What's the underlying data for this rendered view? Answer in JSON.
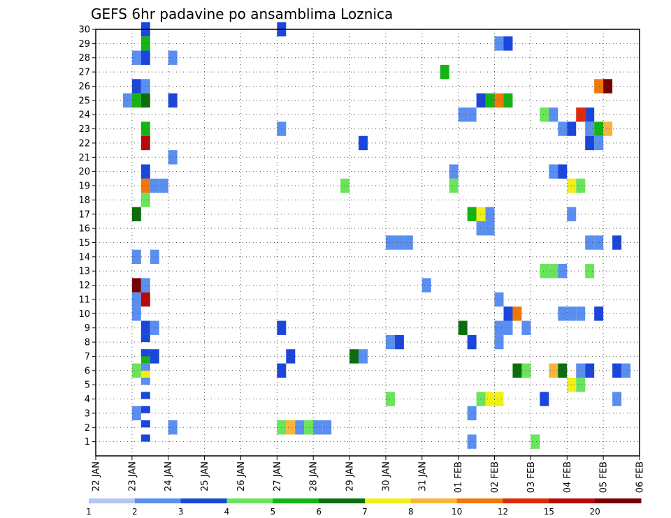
{
  "chart_data": {
    "type": "heatmap",
    "title": "GEFS 6hr padavine po ansamblima Loznica",
    "xlabel": "",
    "ylabel": "",
    "y_range": [
      0,
      30
    ],
    "y_ticks": [
      1,
      2,
      3,
      4,
      5,
      6,
      7,
      8,
      9,
      10,
      11,
      12,
      13,
      14,
      15,
      16,
      17,
      18,
      19,
      20,
      21,
      22,
      23,
      24,
      25,
      26,
      27,
      28,
      29,
      30
    ],
    "x_ticks": [
      "22 JAN",
      "23 JAN",
      "24 JAN",
      "25 JAN",
      "26 JAN",
      "27 JAN",
      "28 JAN",
      "29 JAN",
      "30 JAN",
      "31 JAN",
      "01 FEB",
      "02 FEB",
      "03 FEB",
      "04 FEB",
      "05 FEB",
      "06 FEB"
    ],
    "x_steps_total": 60,
    "grid": true,
    "legend_placement": "bottom",
    "legend_colors": [
      "#b4c6f6",
      "#5a8ef0",
      "#1a46dc",
      "#6ae45a",
      "#14b414",
      "#0a6e0a",
      "#f0f014",
      "#f8b43c",
      "#f0780a",
      "#dc2a0a",
      "#b40a0a",
      "#780000"
    ],
    "legend_labels": [
      "1",
      "2",
      "3",
      "4",
      "5",
      "6",
      "7",
      "8",
      "10",
      "12",
      "15",
      "20"
    ],
    "cells": [
      [
        5,
        30,
        2
      ],
      [
        20,
        30,
        2
      ],
      [
        5,
        29,
        4
      ],
      [
        44,
        29,
        1
      ],
      [
        45,
        29,
        2
      ],
      [
        4,
        28,
        1
      ],
      [
        5,
        28,
        2
      ],
      [
        8,
        28,
        1
      ],
      [
        38,
        27,
        4
      ],
      [
        4,
        26,
        2
      ],
      [
        5,
        26,
        1
      ],
      [
        55,
        26,
        8
      ],
      [
        56,
        26,
        11
      ],
      [
        3,
        25,
        1
      ],
      [
        4,
        25,
        4
      ],
      [
        5,
        25,
        5
      ],
      [
        8,
        25,
        2
      ],
      [
        42,
        25,
        2
      ],
      [
        43,
        25,
        4
      ],
      [
        44,
        25,
        8
      ],
      [
        45,
        25,
        4
      ],
      [
        40,
        24,
        1
      ],
      [
        41,
        24,
        1
      ],
      [
        49,
        24,
        3
      ],
      [
        50,
        24,
        1
      ],
      [
        53,
        24,
        9
      ],
      [
        54,
        24,
        2
      ],
      [
        5,
        23,
        4
      ],
      [
        20,
        23,
        1
      ],
      [
        51,
        23,
        1
      ],
      [
        52,
        23,
        2
      ],
      [
        54,
        23,
        1
      ],
      [
        55,
        23,
        4
      ],
      [
        56,
        23,
        7
      ],
      [
        5,
        22,
        10
      ],
      [
        29,
        22,
        2
      ],
      [
        54,
        22,
        2
      ],
      [
        55,
        22,
        1
      ],
      [
        8,
        21,
        1
      ],
      [
        5,
        20,
        2
      ],
      [
        39,
        20,
        1
      ],
      [
        50,
        20,
        1
      ],
      [
        51,
        20,
        2
      ],
      [
        5,
        19,
        8
      ],
      [
        6,
        19,
        1
      ],
      [
        7,
        19,
        1
      ],
      [
        27,
        19,
        3
      ],
      [
        39,
        19,
        3
      ],
      [
        52,
        19,
        6
      ],
      [
        53,
        19,
        3
      ],
      [
        5,
        18,
        3
      ],
      [
        4,
        17,
        5
      ],
      [
        41,
        17,
        4
      ],
      [
        42,
        17,
        6
      ],
      [
        43,
        17,
        1
      ],
      [
        52,
        17,
        1
      ],
      [
        42,
        16,
        1
      ],
      [
        43,
        16,
        1
      ],
      [
        32,
        15,
        1
      ],
      [
        33,
        15,
        1
      ],
      [
        34,
        15,
        1
      ],
      [
        54,
        15,
        1
      ],
      [
        55,
        15,
        1
      ],
      [
        57,
        15,
        2
      ],
      [
        4,
        14,
        1
      ],
      [
        6,
        14,
        1
      ],
      [
        49,
        13,
        3
      ],
      [
        50,
        13,
        3
      ],
      [
        51,
        13,
        1
      ],
      [
        54,
        13,
        3
      ],
      [
        4,
        12,
        11
      ],
      [
        5,
        12,
        1
      ],
      [
        36,
        12,
        1
      ],
      [
        4,
        11,
        1
      ],
      [
        5,
        11,
        10
      ],
      [
        44,
        11,
        1
      ],
      [
        4,
        10,
        1
      ],
      [
        45,
        10,
        2
      ],
      [
        46,
        10,
        8
      ],
      [
        51,
        10,
        1
      ],
      [
        52,
        10,
        1
      ],
      [
        53,
        10,
        1
      ],
      [
        55,
        10,
        2
      ],
      [
        5,
        9,
        2
      ],
      [
        6,
        9,
        1
      ],
      [
        20,
        9,
        2
      ],
      [
        40,
        9,
        5
      ],
      [
        44,
        9,
        1
      ],
      [
        45,
        9,
        1
      ],
      [
        47,
        9,
        1
      ],
      [
        32,
        8,
        1
      ],
      [
        33,
        8,
        2
      ],
      [
        41,
        8,
        2
      ],
      [
        44,
        8,
        1
      ],
      [
        5,
        7,
        4
      ],
      [
        6,
        7,
        2
      ],
      [
        21,
        7,
        2
      ],
      [
        28,
        7,
        5
      ],
      [
        29,
        7,
        1
      ],
      [
        4,
        6,
        3
      ],
      [
        5,
        6,
        6
      ],
      [
        20,
        6,
        2
      ],
      [
        46,
        6,
        5
      ],
      [
        47,
        6,
        3
      ],
      [
        50,
        6,
        7
      ],
      [
        51,
        6,
        5
      ],
      [
        53,
        6,
        1
      ],
      [
        54,
        6,
        2
      ],
      [
        57,
        6,
        2
      ],
      [
        58,
        6,
        1
      ],
      [
        52,
        5,
        6
      ],
      [
        53,
        5,
        3
      ],
      [
        32,
        4,
        3
      ],
      [
        42,
        4,
        3
      ],
      [
        43,
        4,
        6
      ],
      [
        44,
        4,
        6
      ],
      [
        49,
        4,
        2
      ],
      [
        57,
        4,
        1
      ],
      [
        4,
        3,
        1
      ],
      [
        41,
        3,
        1
      ],
      [
        8,
        2,
        1
      ],
      [
        20,
        2,
        3
      ],
      [
        21,
        2,
        7
      ],
      [
        22,
        2,
        1
      ],
      [
        23,
        2,
        3
      ],
      [
        24,
        2,
        1
      ],
      [
        25,
        2,
        1
      ],
      [
        41,
        1,
        1
      ],
      [
        48,
        1,
        3
      ]
    ],
    "cells_half": [
      [
        5,
        1,
        2
      ],
      [
        5,
        2,
        2
      ],
      [
        5,
        3,
        2
      ],
      [
        5,
        4,
        2
      ],
      [
        5,
        5,
        1
      ],
      [
        5,
        6,
        1
      ],
      [
        5,
        7,
        2
      ],
      [
        5,
        8,
        2
      ]
    ]
  }
}
